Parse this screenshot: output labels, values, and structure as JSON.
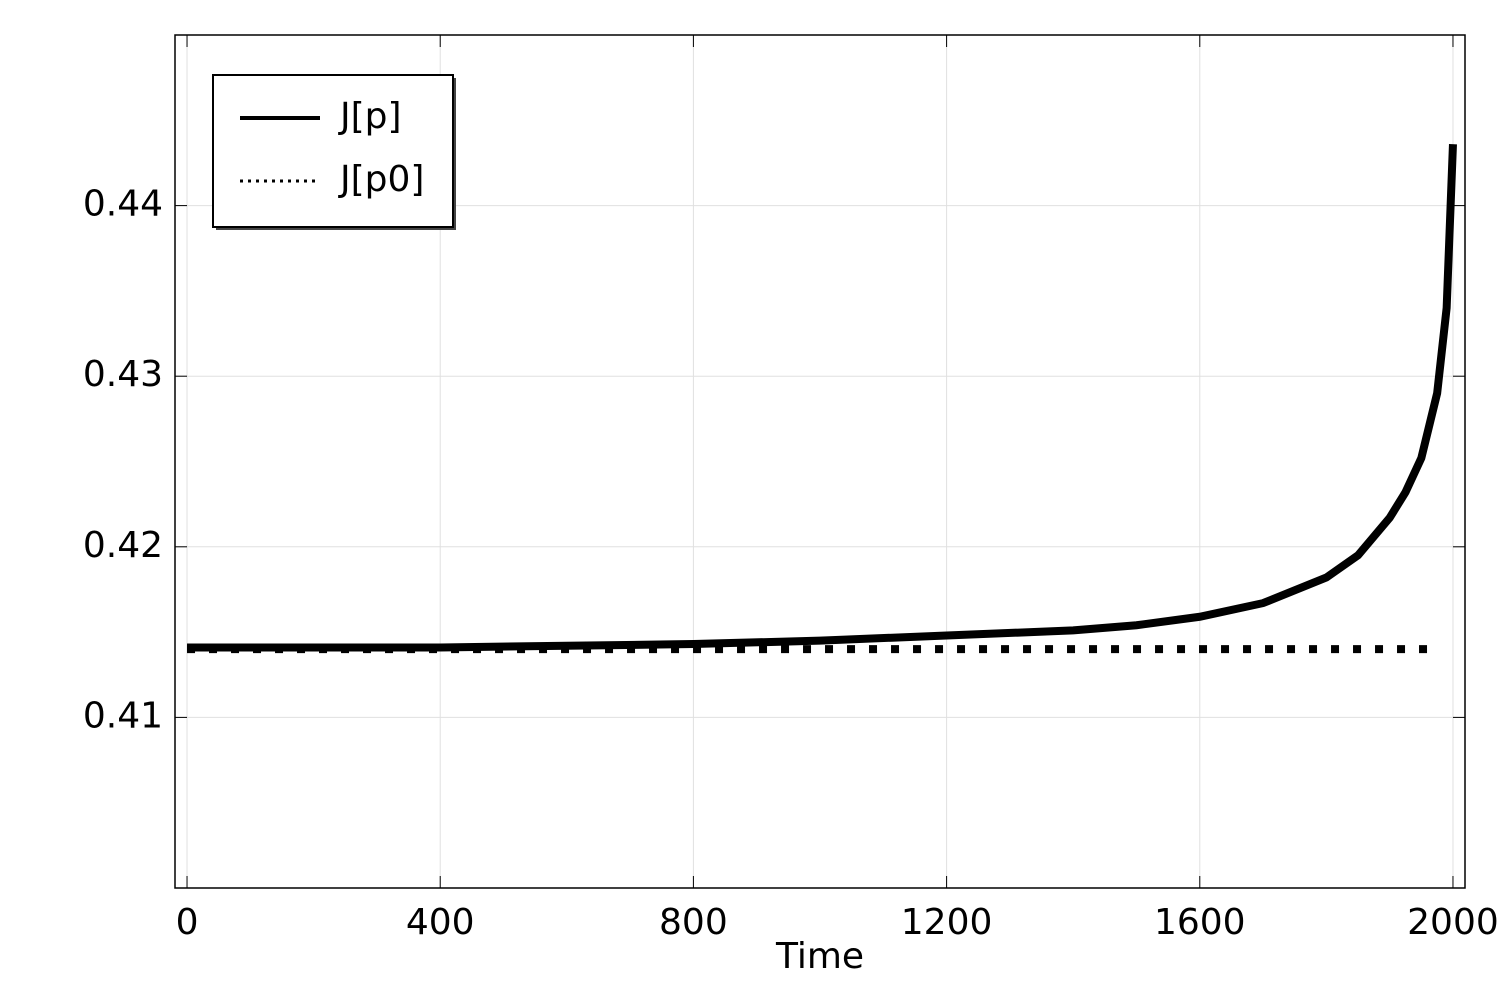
{
  "chart_data": {
    "type": "line",
    "x_label": "Time",
    "series": [
      {
        "name": "J[p]",
        "color": "#000000",
        "style": "solid",
        "x": [
          0,
          200,
          400,
          600,
          800,
          1000,
          1200,
          1400,
          1500,
          1600,
          1700,
          1800,
          1850,
          1900,
          1925,
          1950,
          1975,
          1990,
          2000
        ],
        "values": [
          0.4141,
          0.4141,
          0.4141,
          0.4142,
          0.4143,
          0.4145,
          0.4148,
          0.4151,
          0.4154,
          0.4159,
          0.4167,
          0.4182,
          0.4195,
          0.4217,
          0.4232,
          0.4252,
          0.429,
          0.434,
          0.4436
        ]
      },
      {
        "name": "J[p0]",
        "color": "#000000",
        "style": "dotted",
        "x": [
          0,
          1980
        ],
        "values": [
          0.414,
          0.414
        ]
      }
    ],
    "xlim": [
      -19,
      2019
    ],
    "ylim": [
      0.4,
      0.45
    ],
    "xticks": [
      0,
      400,
      800,
      1200,
      1600,
      2000
    ],
    "yticks": [
      0.41,
      0.42,
      0.43,
      0.44
    ],
    "grid": true,
    "legend": "upper left"
  }
}
